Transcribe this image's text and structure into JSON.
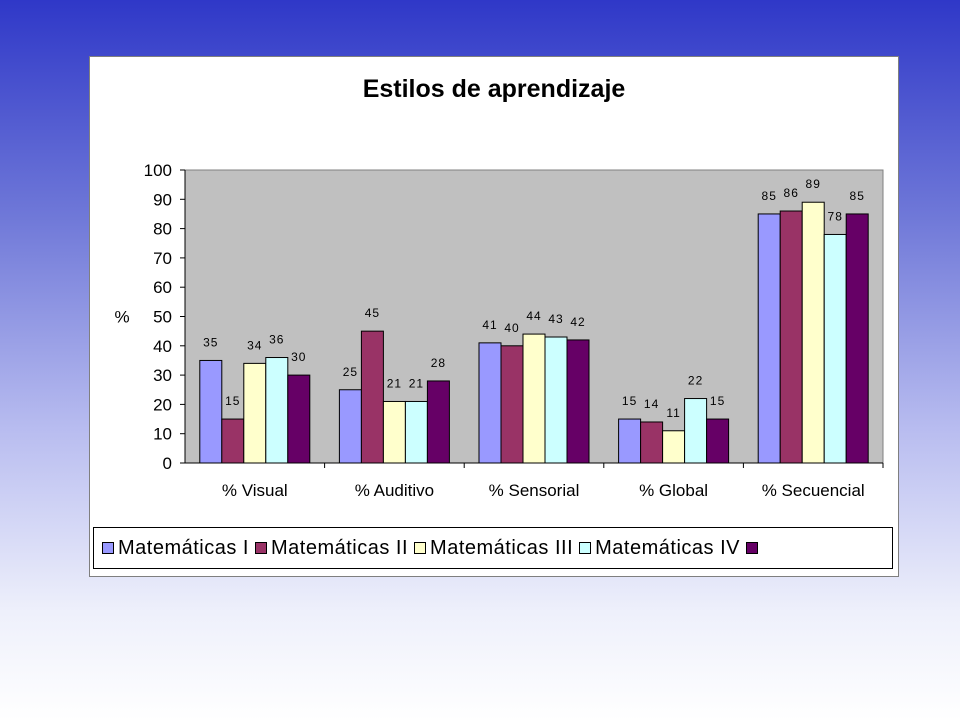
{
  "chart_data": {
    "type": "bar",
    "title": "Estilos de aprendizaje",
    "ylabel": "%",
    "xlabel": "",
    "ylim": [
      0,
      100
    ],
    "yticks": [
      0,
      10,
      20,
      30,
      40,
      50,
      60,
      70,
      80,
      90,
      100
    ],
    "grid": false,
    "legend_position": "bottom",
    "plot_background": "#c0c0c0",
    "categories": [
      "% Visual",
      "% Auditivo",
      "% Sensorial",
      "% Global",
      "% Secuencial"
    ],
    "series": [
      {
        "name": "Matemáticas I",
        "color": "#9999ff",
        "values": [
          35,
          25,
          41,
          15,
          85
        ]
      },
      {
        "name": "Matemáticas II",
        "color": "#993366",
        "values": [
          15,
          45,
          40,
          14,
          86
        ]
      },
      {
        "name": "Matemáticas III",
        "color": "#ffffcc",
        "values": [
          34,
          21,
          44,
          11,
          89
        ]
      },
      {
        "name": "Matemáticas IV",
        "color": "#ccffff",
        "values": [
          36,
          21,
          43,
          22,
          78
        ]
      },
      {
        "name": "",
        "color": "#660066",
        "values": [
          30,
          28,
          42,
          15,
          85
        ]
      }
    ]
  }
}
